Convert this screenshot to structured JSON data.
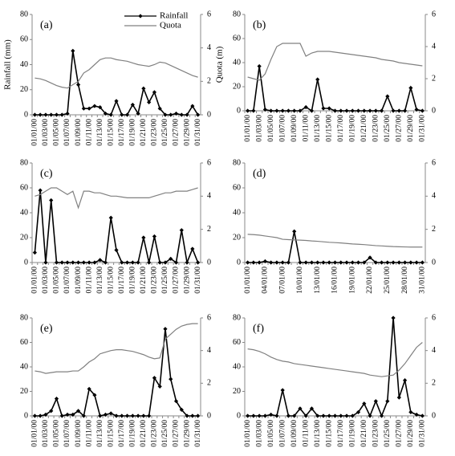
{
  "chart_data": [
    {
      "type": "line",
      "annotation": "(a)",
      "y_label": "Rainfall (mm)",
      "y2_label": "Quota (m)",
      "legend": "top-right",
      "categories": [
        "01/01/00",
        null,
        "01/03/00",
        null,
        "01/05/00",
        null,
        "01/07/00",
        null,
        "01/09/00",
        null,
        "01/11/00",
        null,
        "01/13/00",
        null,
        "01/15/00",
        null,
        "01/17/00",
        null,
        "01/19/00",
        null,
        "01/21/00",
        null,
        "01/23/00",
        null,
        "01/25/00",
        null,
        "01/27/00",
        null,
        "01/29/00",
        null,
        "01/31/00"
      ],
      "series": [
        {
          "name": "Rainfall",
          "color": "#000000",
          "axis": "y",
          "values": [
            0,
            0,
            0,
            0,
            0,
            0,
            1,
            51,
            24,
            5,
            5,
            7,
            6,
            1,
            0,
            11,
            0,
            0,
            8,
            1,
            21,
            10,
            18,
            5,
            0,
            0,
            1,
            0,
            0,
            7,
            0
          ]
        },
        {
          "name": "Quota",
          "color": "#808080",
          "axis": "y2",
          "values": [
            2.2,
            2.15,
            2.05,
            1.9,
            1.75,
            1.65,
            1.6,
            1.8,
            2.0,
            2.5,
            2.7,
            3.0,
            3.3,
            3.4,
            3.4,
            3.3,
            3.25,
            3.2,
            3.1,
            3.0,
            2.95,
            2.9,
            3.0,
            3.15,
            3.1,
            2.95,
            2.8,
            2.65,
            2.5,
            2.35,
            2.25
          ]
        }
      ],
      "ylim": [
        0,
        80
      ],
      "yticks": [
        0,
        20,
        40,
        60,
        80
      ],
      "y2lim": [
        0,
        6
      ],
      "y2ticks": [
        0,
        2,
        4,
        6
      ]
    },
    {
      "type": "line",
      "annotation": "(b)",
      "categories": [
        "01/01/00",
        null,
        "01/03/00",
        null,
        "01/05/00",
        null,
        "01/07/00",
        null,
        "01/09/00",
        null,
        "01/11/00",
        null,
        "01/13/00",
        null,
        "01/15/00",
        null,
        "01/17/00",
        null,
        "01/19/00",
        null,
        "01/21/00",
        null,
        "01/23/00",
        null,
        "01/25/00",
        null,
        "01/27/00",
        null,
        "01/29/00",
        null,
        "01/31/00"
      ],
      "series": [
        {
          "color": "#000000",
          "axis": "y",
          "values": [
            0,
            0,
            37,
            1,
            0,
            0,
            0,
            0,
            0,
            0,
            3,
            0,
            26,
            2,
            2,
            0,
            0,
            0,
            0,
            0,
            0,
            0,
            0,
            0,
            12,
            0,
            0,
            0,
            19,
            1,
            0
          ]
        },
        {
          "color": "#808080",
          "axis": "y2",
          "values": [
            2.1,
            2.0,
            1.9,
            2.3,
            3.2,
            4.0,
            4.2,
            4.2,
            4.2,
            4.2,
            3.4,
            3.6,
            3.7,
            3.7,
            3.7,
            3.65,
            3.6,
            3.55,
            3.5,
            3.45,
            3.4,
            3.35,
            3.3,
            3.2,
            3.15,
            3.1,
            3.0,
            2.95,
            2.9,
            2.85,
            2.8
          ]
        }
      ],
      "ylim": [
        0,
        80
      ],
      "yticks": [
        0,
        20,
        40,
        60,
        80
      ],
      "y2lim": [
        0,
        6
      ],
      "y2ticks": [
        0,
        2,
        4,
        6
      ]
    },
    {
      "type": "line",
      "annotation": "(c)",
      "categories": [
        "01/01/00",
        null,
        "01/03/00",
        null,
        "01/05/00",
        null,
        "01/07/00",
        null,
        "01/09/00",
        null,
        "01/11/00",
        null,
        "01/13/00",
        null,
        "01/15/00",
        null,
        "01/17/00",
        null,
        "01/19/00",
        null,
        "01/21/00",
        null,
        "01/23/00",
        null,
        "01/25/00",
        null,
        "01/27/00",
        null,
        "01/29/00",
        null,
        "01/31/00"
      ],
      "series": [
        {
          "color": "#000000",
          "axis": "y",
          "values": [
            8,
            58,
            0,
            50,
            0,
            0,
            0,
            0,
            0,
            0,
            0,
            0,
            2,
            0,
            36,
            10,
            0,
            0,
            0,
            0,
            20,
            0,
            21,
            0,
            0,
            3,
            0,
            26,
            0,
            11,
            0
          ]
        },
        {
          "color": "#808080",
          "axis": "y2",
          "values": [
            4.0,
            4.1,
            4.3,
            4.5,
            4.5,
            4.3,
            4.1,
            4.3,
            3.3,
            4.3,
            4.3,
            4.2,
            4.2,
            4.1,
            4.0,
            4.0,
            3.95,
            3.9,
            3.9,
            3.9,
            3.9,
            3.9,
            4.0,
            4.1,
            4.2,
            4.2,
            4.3,
            4.3,
            4.3,
            4.4,
            4.5
          ]
        }
      ],
      "ylim": [
        0,
        80
      ],
      "yticks": [
        0,
        20,
        40,
        60,
        80
      ],
      "y2lim": [
        0,
        6
      ],
      "y2ticks": [
        0,
        2,
        4,
        6
      ]
    },
    {
      "type": "line",
      "annotation": "(d)",
      "categories": [
        "01/01/00",
        null,
        null,
        "04/01/00",
        null,
        null,
        "07/01/00",
        null,
        null,
        "10/01/00",
        null,
        null,
        "13/01/00",
        null,
        null,
        "16/01/00",
        null,
        null,
        "19/01/00",
        null,
        null,
        "22/01/00",
        null,
        null,
        "25/01/00",
        null,
        null,
        "28/01/00",
        null,
        null,
        "31/01/00"
      ],
      "series": [
        {
          "color": "#000000",
          "axis": "y",
          "values": [
            0,
            0,
            0,
            1,
            0,
            0,
            0,
            0,
            25,
            0,
            0,
            0,
            0,
            0,
            0,
            0,
            0,
            0,
            0,
            0,
            0,
            4,
            0,
            0,
            0,
            0,
            0,
            0,
            0,
            0,
            0
          ]
        },
        {
          "color": "#808080",
          "axis": "y2",
          "values": [
            1.7,
            1.68,
            1.65,
            1.6,
            1.55,
            1.5,
            1.4,
            1.38,
            1.36,
            1.35,
            1.33,
            1.3,
            1.28,
            1.25,
            1.22,
            1.2,
            1.18,
            1.15,
            1.12,
            1.1,
            1.08,
            1.05,
            1.02,
            1.0,
            0.98,
            0.96,
            0.95,
            0.94,
            0.93,
            0.93,
            0.93
          ]
        }
      ],
      "ylim": [
        0,
        80
      ],
      "yticks": [
        0,
        20,
        40,
        60,
        80
      ],
      "y2lim": [
        0,
        6
      ],
      "y2ticks": [
        0,
        2,
        4,
        6
      ]
    },
    {
      "type": "line",
      "annotation": "(e)",
      "categories": [
        "01/01/00",
        null,
        "01/03/00",
        null,
        "01/05/00",
        null,
        "01/07/00",
        null,
        "01/09/00",
        null,
        "01/11/00",
        null,
        "01/13/00",
        null,
        "01/15/00",
        null,
        "01/17/00",
        null,
        "01/19/00",
        null,
        "01/21/00",
        null,
        "01/23/00",
        null,
        "01/25/00",
        null,
        "01/27/00",
        null,
        "01/29/00",
        null,
        "01/31/00"
      ],
      "series": [
        {
          "color": "#000000",
          "axis": "y",
          "values": [
            0,
            0,
            1,
            4,
            14,
            0,
            1,
            1,
            4,
            0,
            22,
            17,
            0,
            1,
            2,
            0,
            0,
            0,
            0,
            0,
            0,
            0,
            31,
            24,
            71,
            30,
            12,
            5,
            0,
            0,
            0
          ]
        },
        {
          "color": "#808080",
          "axis": "y2",
          "values": [
            2.75,
            2.7,
            2.6,
            2.65,
            2.7,
            2.7,
            2.7,
            2.75,
            2.75,
            3.0,
            3.3,
            3.5,
            3.8,
            3.9,
            4.0,
            4.05,
            4.05,
            4.0,
            3.95,
            3.85,
            3.75,
            3.6,
            3.5,
            3.55,
            4.7,
            5.0,
            5.3,
            5.5,
            5.6,
            5.65,
            5.65
          ]
        }
      ],
      "ylim": [
        0,
        80
      ],
      "yticks": [
        0,
        20,
        40,
        60,
        80
      ],
      "y2lim": [
        0,
        6
      ],
      "y2ticks": [
        0,
        2,
        4,
        6
      ]
    },
    {
      "type": "line",
      "annotation": "(f)",
      "categories": [
        "01/01/00",
        null,
        "01/03/00",
        null,
        "01/05/00",
        null,
        "01/07/00",
        null,
        "01/09/00",
        null,
        "01/11/00",
        null,
        "01/13/00",
        null,
        "01/15/00",
        null,
        "01/17/00",
        null,
        "01/19/00",
        null,
        "01/21/00",
        null,
        "01/23/00",
        null,
        "01/25/00",
        null,
        "01/27/00",
        null,
        "01/29/00",
        null,
        "01/31/00"
      ],
      "series": [
        {
          "color": "#000000",
          "axis": "y",
          "values": [
            0,
            0,
            0,
            0,
            1,
            0,
            21,
            0,
            0,
            6,
            0,
            6,
            0,
            0,
            0,
            0,
            0,
            0,
            0,
            3,
            10,
            0,
            12,
            0,
            12,
            80,
            15,
            29,
            3,
            1,
            0
          ]
        },
        {
          "color": "#808080",
          "axis": "y2",
          "values": [
            4.1,
            4.05,
            3.95,
            3.8,
            3.6,
            3.45,
            3.35,
            3.3,
            3.2,
            3.15,
            3.1,
            3.05,
            3.0,
            2.95,
            2.9,
            2.85,
            2.8,
            2.75,
            2.7,
            2.65,
            2.6,
            2.5,
            2.45,
            2.4,
            2.45,
            2.5,
            2.8,
            3.2,
            3.7,
            4.2,
            4.5
          ]
        }
      ],
      "ylim": [
        0,
        80
      ],
      "yticks": [
        0,
        20,
        40,
        60,
        80
      ],
      "y2lim": [
        0,
        6
      ],
      "y2ticks": [
        0,
        2,
        4,
        6
      ]
    }
  ]
}
